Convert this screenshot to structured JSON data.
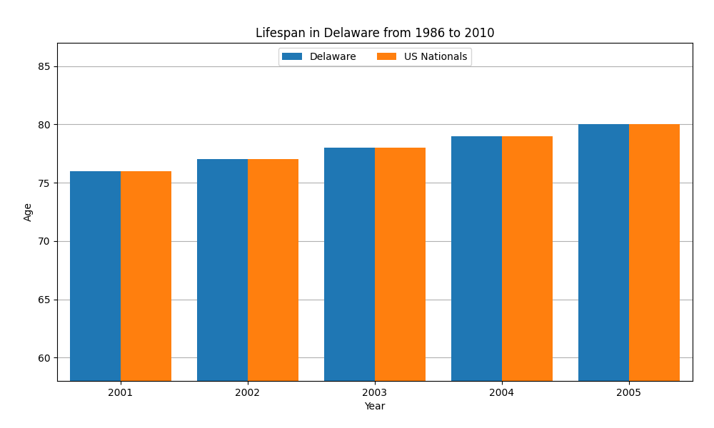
{
  "chart_data": {
    "type": "bar",
    "title": "Lifespan in Delaware from 1986 to 2010",
    "x_label": "Year",
    "y_label": "Age",
    "categories": [
      "2001",
      "2002",
      "2003",
      "2004",
      "2005"
    ],
    "series": [
      {
        "name": "Delaware",
        "values": [
          76,
          77,
          78,
          79,
          80
        ]
      },
      {
        "name": "US Nationals",
        "values": [
          76,
          77,
          78,
          79,
          80
        ]
      }
    ],
    "ylim": [
      58,
      87
    ],
    "yticks": [
      60,
      65,
      70,
      75,
      80,
      85
    ],
    "grid": true,
    "legend": "upper center"
  }
}
